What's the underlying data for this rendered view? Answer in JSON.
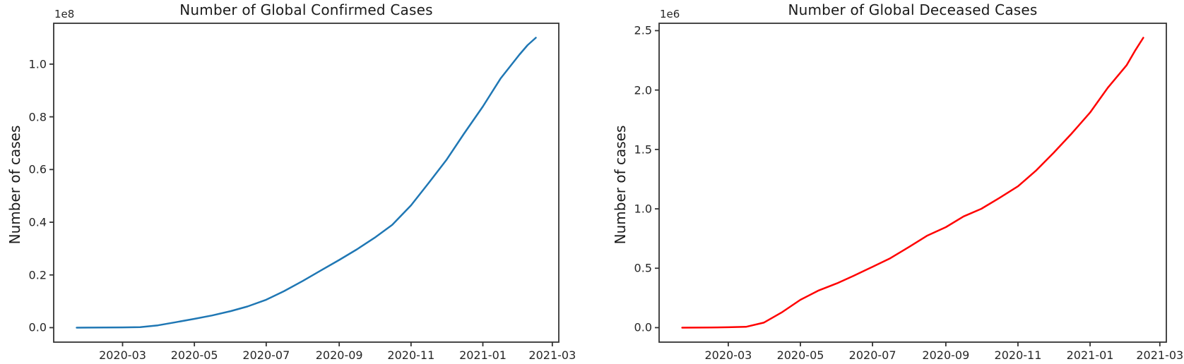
{
  "figure": {
    "background": "#ffffff",
    "text_color": "#262626",
    "spine_color": "#333333"
  },
  "chart_data": [
    {
      "type": "line",
      "title": "Number of Global Confirmed Cases",
      "xlabel": "",
      "ylabel": "Number of cases",
      "y_offset_text": "1e8",
      "line_color": "#1f77b4",
      "legend": "none",
      "grid": false,
      "x_ticks": [
        "2020-03",
        "2020-05",
        "2020-07",
        "2020-09",
        "2020-11",
        "2021-01",
        "2021-03"
      ],
      "x_tick_dates": [
        "2020-03-01",
        "2020-05-01",
        "2020-07-01",
        "2020-09-01",
        "2020-11-01",
        "2021-01-01",
        "2021-03-01"
      ],
      "y_ticks": [
        "0.0",
        "0.2",
        "0.4",
        "0.6",
        "0.8",
        "1.0"
      ],
      "y_tick_values": [
        0.0,
        0.2,
        0.4,
        0.6,
        0.8,
        1.0
      ],
      "xlim_days": [
        -19.5,
        409.5
      ],
      "ylim": [
        -0.055,
        1.155
      ],
      "series": [
        {
          "name": "global-confirmed-cases",
          "units": "1e8 cases",
          "points": [
            [
              "2020-01-22",
              1e-05
            ],
            [
              "2020-02-01",
              0.00012
            ],
            [
              "2020-02-15",
              0.00069
            ],
            [
              "2020-03-01",
              0.00088
            ],
            [
              "2020-03-16",
              0.00182
            ],
            [
              "2020-03-31",
              0.00858
            ],
            [
              "2020-04-15",
              0.0206
            ],
            [
              "2020-05-01",
              0.0334
            ],
            [
              "2020-05-16",
              0.0463
            ],
            [
              "2020-06-01",
              0.0627
            ],
            [
              "2020-06-15",
              0.0803
            ],
            [
              "2020-07-01",
              0.106
            ],
            [
              "2020-07-16",
              0.138
            ],
            [
              "2020-08-01",
              0.177
            ],
            [
              "2020-08-16",
              0.216
            ],
            [
              "2020-09-01",
              0.257
            ],
            [
              "2020-09-16",
              0.297
            ],
            [
              "2020-10-01",
              0.341
            ],
            [
              "2020-10-16",
              0.39
            ],
            [
              "2020-11-01",
              0.464
            ],
            [
              "2020-11-16",
              0.549
            ],
            [
              "2020-12-01",
              0.636
            ],
            [
              "2020-12-16",
              0.736
            ],
            [
              "2021-01-01",
              0.839
            ],
            [
              "2021-01-16",
              0.945
            ],
            [
              "2021-02-01",
              1.036
            ],
            [
              "2021-02-08",
              1.072
            ],
            [
              "2021-02-15",
              1.1
            ]
          ]
        }
      ]
    },
    {
      "type": "line",
      "title": "Number of Global Deceased Cases",
      "xlabel": "",
      "ylabel": "Number of cases",
      "y_offset_text": "1e6",
      "line_color": "#ff0000",
      "legend": "none",
      "grid": false,
      "x_ticks": [
        "2020-03",
        "2020-05",
        "2020-07",
        "2020-09",
        "2020-11",
        "2021-01",
        "2021-03"
      ],
      "x_tick_dates": [
        "2020-03-01",
        "2020-05-01",
        "2020-07-01",
        "2020-09-01",
        "2020-11-01",
        "2021-01-01",
        "2021-03-01"
      ],
      "y_ticks": [
        "0.0",
        "0.5",
        "1.0",
        "1.5",
        "2.0",
        "2.5"
      ],
      "y_tick_values": [
        0.0,
        0.5,
        1.0,
        1.5,
        2.0,
        2.5
      ],
      "xlim_days": [
        -19.5,
        409.5
      ],
      "ylim": [
        -0.122,
        2.562
      ],
      "series": [
        {
          "name": "global-deceased-cases",
          "units": "1e6 cases",
          "points": [
            [
              "2020-01-22",
              2e-05
            ],
            [
              "2020-02-15",
              0.0017
            ],
            [
              "2020-03-01",
              0.003
            ],
            [
              "2020-03-16",
              0.007
            ],
            [
              "2020-03-31",
              0.042
            ],
            [
              "2020-04-15",
              0.127
            ],
            [
              "2020-05-01",
              0.234
            ],
            [
              "2020-05-16",
              0.311
            ],
            [
              "2020-06-01",
              0.373
            ],
            [
              "2020-06-15",
              0.436
            ],
            [
              "2020-07-01",
              0.512
            ],
            [
              "2020-07-16",
              0.584
            ],
            [
              "2020-08-01",
              0.68
            ],
            [
              "2020-08-16",
              0.773
            ],
            [
              "2020-09-01",
              0.846
            ],
            [
              "2020-09-16",
              0.936
            ],
            [
              "2020-10-01",
              1.0
            ],
            [
              "2020-10-16",
              1.09
            ],
            [
              "2020-11-01",
              1.19
            ],
            [
              "2020-11-16",
              1.32
            ],
            [
              "2020-12-01",
              1.47
            ],
            [
              "2020-12-16",
              1.63
            ],
            [
              "2021-01-01",
              1.81
            ],
            [
              "2021-01-16",
              2.02
            ],
            [
              "2021-02-01",
              2.21
            ],
            [
              "2021-02-08",
              2.33
            ],
            [
              "2021-02-15",
              2.44
            ]
          ]
        }
      ]
    }
  ]
}
